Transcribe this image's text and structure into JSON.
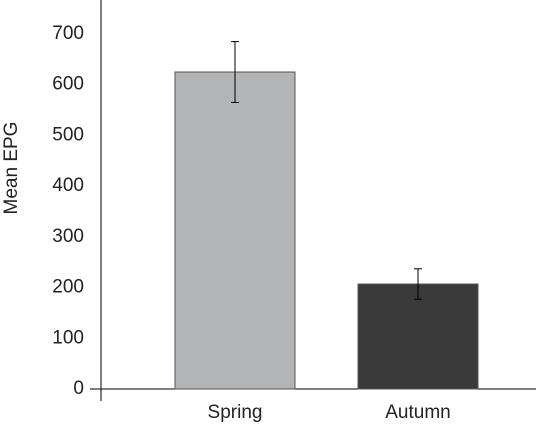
{
  "chart_data": {
    "type": "bar",
    "y_label": "Mean EPG",
    "categories": [
      "Spring",
      "Autumn"
    ],
    "values": [
      625,
      207
    ],
    "errors": [
      60,
      30
    ],
    "colors": [
      "#b3b4b6",
      "#3a3a3a"
    ],
    "ylim": [
      0,
      767
    ],
    "yticks": [
      0,
      100,
      200,
      300,
      400,
      500,
      600,
      700
    ]
  }
}
